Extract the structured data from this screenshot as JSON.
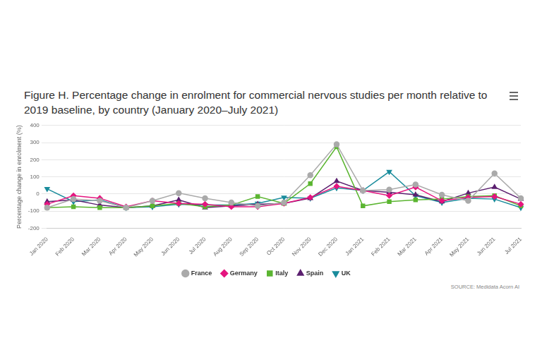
{
  "chart_data": {
    "type": "line",
    "title": "Figure H. Percentage change in enrolment for commercial nervous studies per month relative to 2019 baseline, by country (January 2020–July 2021)",
    "y_label": "Percentage change in enrolment (%)",
    "source": "SOURCE: Medidata Acorn AI",
    "categories": [
      "Jan 2020",
      "Feb 2020",
      "Mar 2020",
      "Apr 2020",
      "May 2020",
      "Jun 2020",
      "Jul 2020",
      "Aug 2020",
      "Sep 2020",
      "Oct 2020",
      "Nov 2020",
      "Dec 2020",
      "Jan 2021",
      "Feb 2021",
      "Mar 2021",
      "Apr 2021",
      "May 2021",
      "Jun 2021",
      "Jul 2021"
    ],
    "series": [
      {
        "name": "France",
        "color": "#aaaaaa",
        "marker": "circle",
        "values": [
          -80,
          -30,
          -40,
          -80,
          -40,
          5,
          -25,
          -50,
          -70,
          -50,
          110,
          290,
          20,
          25,
          55,
          -5,
          -40,
          120,
          -25
        ]
      },
      {
        "name": "Germany",
        "color": "#e5157f",
        "marker": "diamond",
        "values": [
          -60,
          -10,
          -25,
          -75,
          -40,
          -55,
          -60,
          -75,
          -75,
          -55,
          -20,
          45,
          20,
          -10,
          40,
          -40,
          -20,
          -15,
          -60
        ]
      },
      {
        "name": "Italy",
        "color": "#5bb531",
        "marker": "square",
        "values": [
          -80,
          -75,
          -80,
          -80,
          -70,
          -55,
          -75,
          -65,
          -15,
          -55,
          60,
          275,
          -70,
          -45,
          -35,
          -30,
          -15,
          -10,
          -70
        ]
      },
      {
        "name": "Spain",
        "color": "#5b1f6f",
        "marker": "triangle",
        "values": [
          -45,
          -35,
          -65,
          -80,
          -70,
          -35,
          -80,
          -70,
          -60,
          -55,
          -25,
          75,
          20,
          10,
          -5,
          -45,
          5,
          40,
          -30
        ]
      },
      {
        "name": "UK",
        "color": "#1a8c9c",
        "marker": "triangle-down",
        "values": [
          30,
          -45,
          -35,
          -80,
          -75,
          -60,
          -65,
          -65,
          -55,
          -20,
          -25,
          35,
          20,
          130,
          -10,
          -50,
          -25,
          -30,
          -80
        ]
      }
    ],
    "ylim": [
      -200,
      400
    ],
    "yticks": [
      -200,
      -100,
      0,
      100,
      200,
      300,
      400
    ],
    "grid": true,
    "legend": "bottom"
  }
}
